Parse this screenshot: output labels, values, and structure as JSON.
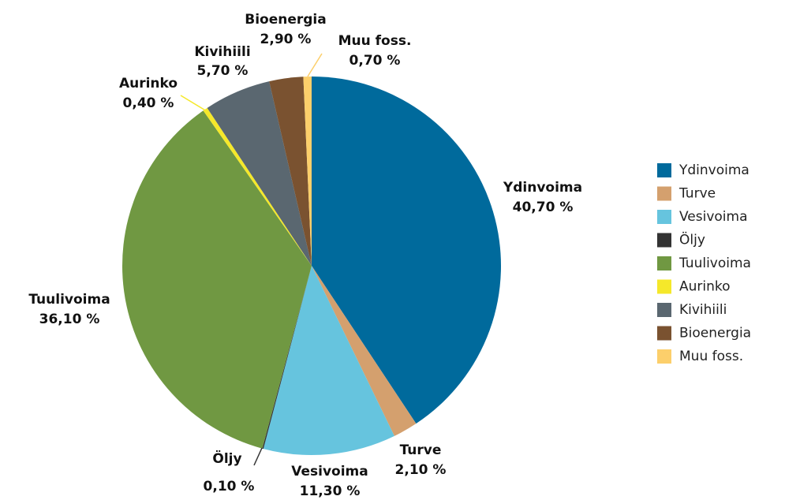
{
  "chart_data": {
    "type": "pie",
    "categories": [
      "Ydinvoima",
      "Turve",
      "Vesivoima",
      "Öljy",
      "Tuulivoima",
      "Aurinko",
      "Kivihiili",
      "Bioenergia",
      "Muu foss."
    ],
    "values": [
      40.7,
      2.1,
      11.3,
      0.1,
      36.1,
      0.4,
      5.7,
      2.9,
      0.7
    ],
    "value_labels": [
      "40,70 %",
      "2,10 %",
      "11,30 %",
      "0,10 %",
      "36,10 %",
      "0,40 %",
      "5,70 %",
      "2,90 %",
      "0,70 %"
    ],
    "colors": [
      "#006a9c",
      "#d4a06e",
      "#66c4de",
      "#333333",
      "#709842",
      "#f5e82a",
      "#5a6770",
      "#7a5230",
      "#fccf6b"
    ],
    "legend": "right"
  }
}
